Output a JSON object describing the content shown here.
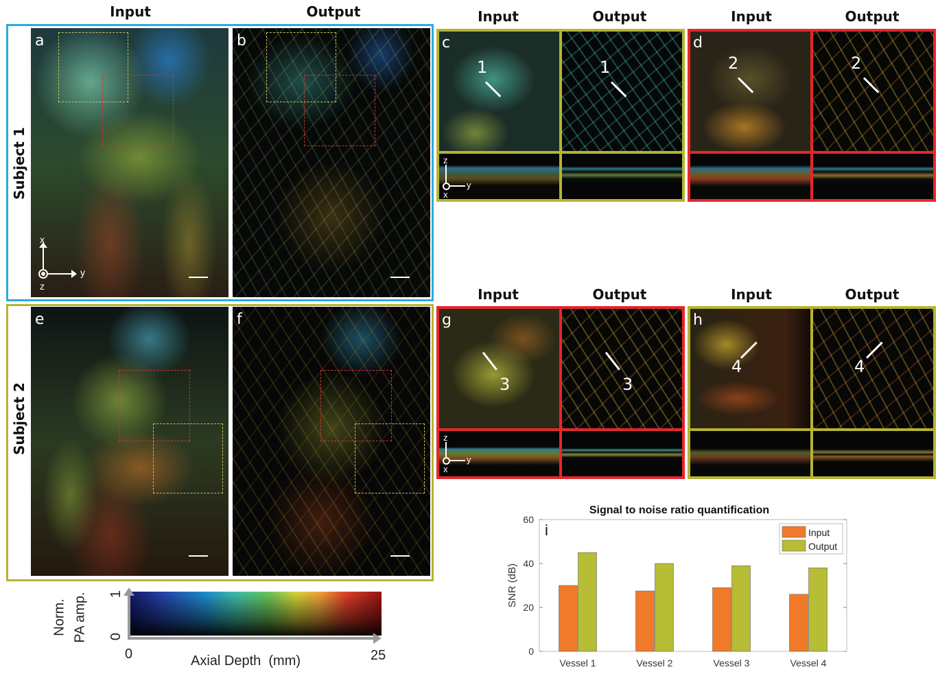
{
  "left": {
    "col_headers": [
      "Input",
      "Output"
    ],
    "subjects": [
      "Subject 1",
      "Subject 2"
    ],
    "panel_labels": [
      "a",
      "b",
      "e",
      "f"
    ],
    "axes": {
      "x": "x",
      "y": "y",
      "z": "z"
    }
  },
  "zoom_top": {
    "headers": [
      "Input",
      "Output",
      "Input",
      "Output"
    ],
    "panel_labels": [
      "c",
      "d"
    ],
    "markers": [
      "1",
      "1",
      "2",
      "2"
    ],
    "axes": {
      "z": "z",
      "y": "y",
      "x": "x"
    }
  },
  "zoom_bottom": {
    "headers": [
      "Input",
      "Output",
      "Input",
      "Output"
    ],
    "panel_labels": [
      "g",
      "h"
    ],
    "markers": [
      "3",
      "3",
      "4",
      "4"
    ],
    "axes": {
      "z": "z",
      "y": "y",
      "x": "x"
    }
  },
  "colorbar": {
    "y_label_line1": "Norm.",
    "y_label_line2": "PA amp.",
    "y_top": "1",
    "y_bottom": "0",
    "x_left": "0",
    "x_right": "25",
    "x_label": "Axial Depth  (mm)"
  },
  "colors": {
    "subject1_frame": "#29abe2",
    "subject2_frame": "#b5b432",
    "red_frame": "#e8262b",
    "olive_frame": "#b5b432",
    "input_bar": "#f07a2a",
    "output_bar": "#b7bd34"
  },
  "chart_data": {
    "type": "bar",
    "title": "Signal to noise ratio quantification",
    "panel_label": "i",
    "categories": [
      "Vessel 1",
      "Vessel 2",
      "Vessel 3",
      "Vessel 4"
    ],
    "series": [
      {
        "name": "Input",
        "values": [
          30,
          27.5,
          29,
          26
        ]
      },
      {
        "name": "Output",
        "values": [
          45,
          40,
          39,
          38
        ]
      }
    ],
    "xlabel": "",
    "ylabel": "SNR (dB)",
    "ylim": [
      0,
      60
    ],
    "yticks": [
      0,
      20,
      40,
      60
    ],
    "legend": "top-right",
    "grid": false
  }
}
